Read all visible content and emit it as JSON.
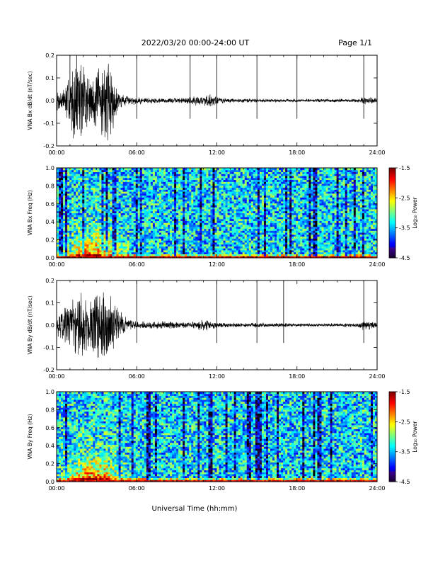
{
  "header": {
    "title": "2022/03/20  00:00-24:00 UT",
    "page": "Page 1/1"
  },
  "chart_data": [
    {
      "type": "line",
      "ylabel": "VNA Bx dB/dt (nT/sec)",
      "xlim": [
        0,
        24
      ],
      "ylim": [
        -0.2,
        0.2
      ],
      "x_ticks": [
        "00:00",
        "06:00",
        "12:00",
        "18:00",
        "24:00"
      ],
      "y_ticks": [
        "-0.2",
        "-0.1",
        "0.0",
        "0.1",
        "0.2"
      ],
      "y_tick_values": [
        -0.2,
        -0.1,
        0.0,
        0.1,
        0.2
      ],
      "spikes_hours": [
        1.0,
        1.5,
        6.0,
        10.0,
        12.0,
        15.0,
        18.0,
        23.0
      ],
      "envelope": {
        "hours": [
          0,
          0.5,
          1,
          1.5,
          2,
          2.5,
          3,
          3.5,
          4,
          4.5,
          5,
          5.5,
          6,
          7,
          8,
          9,
          10,
          11,
          11.5,
          12,
          12.5,
          13,
          14,
          15,
          16,
          17,
          18,
          19,
          20,
          21,
          22,
          22.5,
          23,
          23.5,
          24
        ],
        "amplitude": [
          0.05,
          0.06,
          0.14,
          0.2,
          0.2,
          0.13,
          0.15,
          0.2,
          0.2,
          0.06,
          0.03,
          0.02,
          0.018,
          0.015,
          0.012,
          0.012,
          0.02,
          0.025,
          0.035,
          0.025,
          0.012,
          0.01,
          0.01,
          0.01,
          0.008,
          0.008,
          0.008,
          0.008,
          0.008,
          0.008,
          0.008,
          0.01,
          0.02,
          0.015,
          0.012
        ]
      }
    },
    {
      "type": "heatmap",
      "ylabel": "VNA Bx Freq (Hz)",
      "colorbar_label": "Log₁₀ Power",
      "xlim": [
        0,
        24
      ],
      "ylim": [
        0,
        1.0
      ],
      "x_ticks": [
        "00:00",
        "06:00",
        "12:00",
        "18:00",
        "24:00"
      ],
      "y_ticks": [
        "0.0",
        "0.2",
        "0.4",
        "0.6",
        "0.8",
        "1.0"
      ],
      "y_tick_values": [
        0,
        0.2,
        0.4,
        0.6,
        0.8,
        1.0
      ],
      "colorbar_ticks": [
        "-1.5",
        "-2.5",
        "-3.5",
        "-4.5"
      ],
      "colorbar_tick_values": [
        -1.5,
        -2.5,
        -3.5,
        -4.5
      ],
      "zlim": [
        -4.5,
        -1.5
      ]
    },
    {
      "type": "line",
      "ylabel": "VNA By dB/dt (nT/sec)",
      "xlim": [
        0,
        24
      ],
      "ylim": [
        -0.2,
        0.2
      ],
      "x_ticks": [
        "00:00",
        "06:00",
        "12:00",
        "18:00",
        "24:00"
      ],
      "y_ticks": [
        "-0.2",
        "-0.1",
        "0.0",
        "0.1",
        "0.2"
      ],
      "y_tick_values": [
        -0.2,
        -0.1,
        0.0,
        0.1,
        0.2
      ],
      "spikes_hours": [
        6.0,
        12.0,
        15.0,
        17.0,
        23.0
      ],
      "envelope": {
        "hours": [
          0,
          0.5,
          1,
          1.5,
          2,
          2.5,
          3,
          3.5,
          4,
          4.5,
          5,
          5.5,
          6,
          7,
          8,
          9,
          10,
          11,
          11.5,
          12,
          12.5,
          13,
          14,
          15,
          16,
          17,
          18,
          19,
          20,
          21,
          22,
          22.5,
          23,
          23.5,
          24
        ],
        "amplitude": [
          0.07,
          0.09,
          0.12,
          0.2,
          0.2,
          0.15,
          0.18,
          0.2,
          0.16,
          0.09,
          0.05,
          0.03,
          0.02,
          0.018,
          0.02,
          0.015,
          0.015,
          0.03,
          0.02,
          0.015,
          0.012,
          0.012,
          0.01,
          0.012,
          0.01,
          0.01,
          0.008,
          0.008,
          0.008,
          0.008,
          0.01,
          0.01,
          0.025,
          0.02,
          0.015
        ]
      }
    },
    {
      "type": "heatmap",
      "ylabel": "VNA By Freq (Hz)",
      "colorbar_label": "Log₁₀ Power",
      "xlim": [
        0,
        24
      ],
      "ylim": [
        0,
        1.0
      ],
      "x_ticks": [
        "00:00",
        "06:00",
        "12:00",
        "18:00",
        "24:00"
      ],
      "y_ticks": [
        "0.0",
        "0.2",
        "0.4",
        "0.6",
        "0.8",
        "1.0"
      ],
      "y_tick_values": [
        0,
        0.2,
        0.4,
        0.6,
        0.8,
        1.0
      ],
      "colorbar_ticks": [
        "-1.5",
        "-2.5",
        "-3.5",
        "-4.5"
      ],
      "colorbar_tick_values": [
        -1.5,
        -2.5,
        -3.5,
        -4.5
      ],
      "zlim": [
        -4.5,
        -1.5
      ]
    }
  ],
  "xlabel": "Universal Time (hh:mm)"
}
